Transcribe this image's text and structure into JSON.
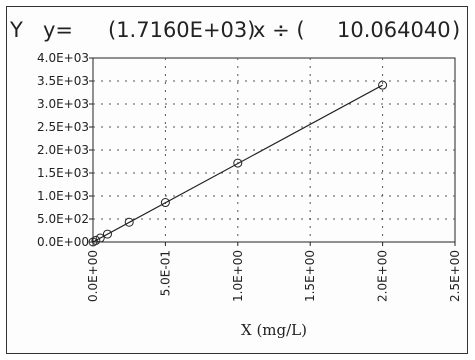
{
  "equation": {
    "y_letter": "Y",
    "y_eq": "y=",
    "slope": "(1.7160E+03)",
    "x_div": "x ÷ (",
    "divisor": "10.064040",
    "close_paren": ")"
  },
  "chart_data": {
    "type": "scatter",
    "title": "",
    "xlabel": "X (mg/L)",
    "ylabel": "",
    "xlim": [
      0,
      2.5
    ],
    "ylim": [
      0,
      4000
    ],
    "x_ticks": [
      0,
      0.5,
      1.0,
      1.5,
      2.0,
      2.5
    ],
    "x_tick_labels": [
      "0.0E+00",
      "5.0E-01",
      "1.0E+00",
      "1.5E+00",
      "2.0E+00",
      "2.5E+00"
    ],
    "y_ticks": [
      0,
      500,
      1000,
      1500,
      2000,
      2500,
      3000,
      3500,
      4000
    ],
    "y_tick_labels": [
      "0.0E+00",
      "5.0E+02",
      "1.0E+03",
      "1.5E+03",
      "2.0E+03",
      "2.5E+03",
      "3.0E+03",
      "3.5E+03",
      "4.0E+03"
    ],
    "grid": true,
    "grid_style": "dotted",
    "series": [
      {
        "points": [
          {
            "x": 0.0,
            "y": 0
          },
          {
            "x": 0.02,
            "y": 34
          },
          {
            "x": 0.05,
            "y": 86
          },
          {
            "x": 0.1,
            "y": 172
          },
          {
            "x": 0.25,
            "y": 430
          },
          {
            "x": 0.5,
            "y": 858
          },
          {
            "x": 1.0,
            "y": 1716
          },
          {
            "x": 2.0,
            "y": 3410
          }
        ],
        "marker": "open-circle",
        "color": "#222222"
      }
    ],
    "fit_line": {
      "x": [
        0.0,
        2.0
      ],
      "y": [
        0,
        3410
      ],
      "color": "#222222"
    }
  }
}
